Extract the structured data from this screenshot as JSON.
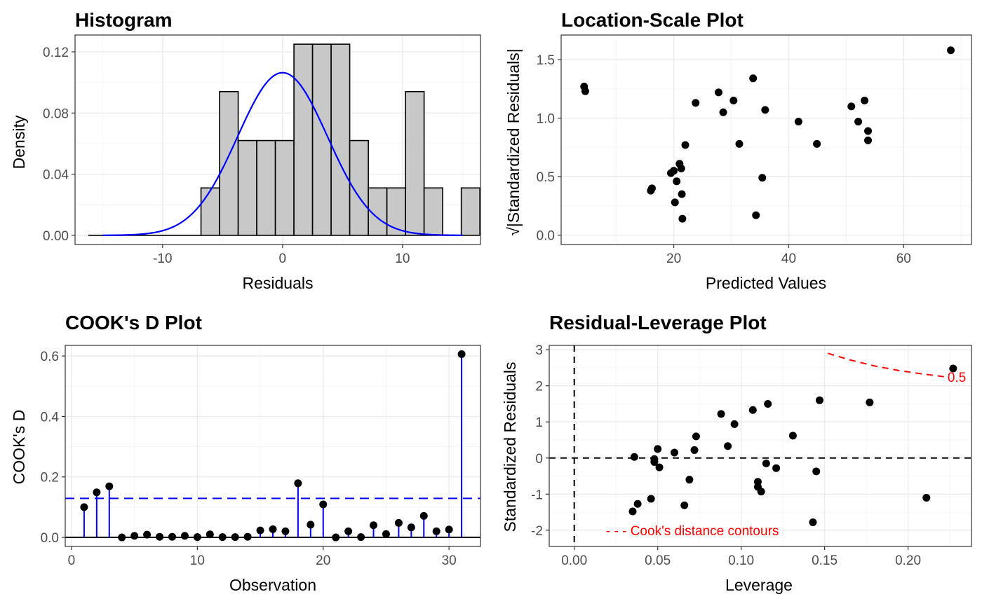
{
  "chart_data": [
    {
      "type": "histogram",
      "title": "Histogram",
      "xlabel": "Residuals",
      "ylabel": "Density",
      "xlim": [
        -17.3,
        16.5
      ],
      "ylim": [
        -0.006,
        0.131
      ],
      "xticks": [
        -10,
        0,
        10
      ],
      "yticks": [
        0.0,
        0.04,
        0.08,
        0.12
      ],
      "ytick_labels": [
        "0.00",
        "0.04",
        "0.08",
        "0.12"
      ],
      "bin_width": 1.55,
      "bins_start": -6.8,
      "densities": [
        0.031,
        0.094,
        0.062,
        0.062,
        0.062,
        0.125,
        0.125,
        0.125,
        0.062,
        0.031,
        0.031,
        0.094,
        0.031,
        0.0,
        0.031
      ],
      "baseline_range": [
        -16.2,
        -6.8
      ],
      "normal_curve": {
        "mean": 0,
        "sd": 3.75,
        "xrange": [
          -15,
          15
        ],
        "color": "#0000ff"
      },
      "bar_fill": "#c8c8c8"
    },
    {
      "type": "scatter",
      "title": "Location-Scale Plot",
      "xlabel": "Predicted Values",
      "ylabel": "√|Standardized Residuals|",
      "xlim": [
        0.4,
        71.8
      ],
      "ylim": [
        -0.08,
        1.71
      ],
      "xticks": [
        20,
        40,
        60
      ],
      "yticks": [
        0.0,
        0.5,
        1.0,
        1.5
      ],
      "ytick_labels": [
        "0.0",
        "0.5",
        "1.0",
        "1.5"
      ],
      "points": [
        [
          4.4,
          1.27
        ],
        [
          4.6,
          1.23
        ],
        [
          16.0,
          0.38
        ],
        [
          16.2,
          0.4
        ],
        [
          19.5,
          0.53
        ],
        [
          20.0,
          0.55
        ],
        [
          20.2,
          0.28
        ],
        [
          20.5,
          0.46
        ],
        [
          21.0,
          0.61
        ],
        [
          21.3,
          0.57
        ],
        [
          21.4,
          0.35
        ],
        [
          21.5,
          0.14
        ],
        [
          22.0,
          0.77
        ],
        [
          23.8,
          1.13
        ],
        [
          27.8,
          1.22
        ],
        [
          28.6,
          1.05
        ],
        [
          30.4,
          1.15
        ],
        [
          31.4,
          0.78
        ],
        [
          33.8,
          1.34
        ],
        [
          34.3,
          0.17
        ],
        [
          35.4,
          0.49
        ],
        [
          35.9,
          1.07
        ],
        [
          41.7,
          0.97
        ],
        [
          44.9,
          0.78
        ],
        [
          50.9,
          1.1
        ],
        [
          52.1,
          0.97
        ],
        [
          53.2,
          1.15
        ],
        [
          53.8,
          0.89
        ],
        [
          53.8,
          0.81
        ],
        [
          68.2,
          1.58
        ]
      ]
    },
    {
      "type": "lollipop",
      "title": "COOK's D Plot",
      "xlabel": "Observation",
      "ylabel": "COOK's D",
      "xlim": [
        -0.5,
        32.5
      ],
      "ylim": [
        -0.03,
        0.635
      ],
      "xticks": [
        0,
        10,
        20,
        30
      ],
      "yticks": [
        0.0,
        0.2,
        0.4,
        0.6
      ],
      "ytick_labels": [
        "0.0",
        "0.2",
        "0.4",
        "0.6"
      ],
      "threshold": 0.129,
      "x": [
        1,
        2,
        3,
        4,
        5,
        6,
        7,
        8,
        9,
        10,
        11,
        12,
        13,
        14,
        15,
        16,
        17,
        18,
        19,
        20,
        21,
        22,
        23,
        24,
        25,
        26,
        27,
        28,
        29,
        30,
        31
      ],
      "values": [
        0.1,
        0.149,
        0.169,
        0.0,
        0.005,
        0.009,
        0.002,
        0.002,
        0.005,
        0.001,
        0.01,
        0.001,
        0.001,
        0.002,
        0.023,
        0.027,
        0.02,
        0.179,
        0.042,
        0.109,
        0.0,
        0.02,
        0.001,
        0.04,
        0.011,
        0.048,
        0.033,
        0.071,
        0.02,
        0.026,
        0.606
      ],
      "color": "#0000ff"
    },
    {
      "type": "scatter",
      "title": "Residual-Leverage Plot",
      "xlabel": "Leverage",
      "ylabel": "Standardized Residuals",
      "xlim": [
        -0.015,
        0.238
      ],
      "ylim": [
        -2.45,
        3.12
      ],
      "xticks": [
        0.0,
        0.05,
        0.1,
        0.15,
        0.2
      ],
      "xtick_labels": [
        "0.00",
        "0.05",
        "0.10",
        "0.15",
        "0.20"
      ],
      "yticks": [
        -2,
        -1,
        0,
        1,
        2,
        3
      ],
      "ytick_labels": [
        "-2",
        "-1",
        "0",
        "1",
        "2",
        "3"
      ],
      "points": [
        [
          0.035,
          -1.48
        ],
        [
          0.036,
          0.03
        ],
        [
          0.038,
          -1.27
        ],
        [
          0.046,
          -1.13
        ],
        [
          0.048,
          -0.03
        ],
        [
          0.048,
          -0.11
        ],
        [
          0.05,
          0.25
        ],
        [
          0.051,
          -0.26
        ],
        [
          0.06,
          0.15
        ],
        [
          0.066,
          -1.31
        ],
        [
          0.069,
          -0.6
        ],
        [
          0.072,
          0.22
        ],
        [
          0.073,
          0.6
        ],
        [
          0.088,
          1.22
        ],
        [
          0.092,
          0.33
        ],
        [
          0.096,
          0.94
        ],
        [
          0.107,
          1.33
        ],
        [
          0.11,
          -0.66
        ],
        [
          0.11,
          -0.8
        ],
        [
          0.112,
          -0.93
        ],
        [
          0.115,
          -0.15
        ],
        [
          0.116,
          1.5
        ],
        [
          0.121,
          -0.28
        ],
        [
          0.131,
          0.62
        ],
        [
          0.143,
          -1.78
        ],
        [
          0.145,
          -0.37
        ],
        [
          0.147,
          1.6
        ],
        [
          0.177,
          1.54
        ],
        [
          0.211,
          -1.1
        ],
        [
          0.227,
          2.48
        ]
      ],
      "contour_label": "0.5",
      "contour_curve": [
        [
          0.152,
          2.9
        ],
        [
          0.165,
          2.72
        ],
        [
          0.18,
          2.55
        ],
        [
          0.195,
          2.42
        ],
        [
          0.21,
          2.32
        ],
        [
          0.222,
          2.25
        ]
      ],
      "legend": "- - - Cook's distance contours",
      "contour_color": "#ff0000"
    }
  ]
}
